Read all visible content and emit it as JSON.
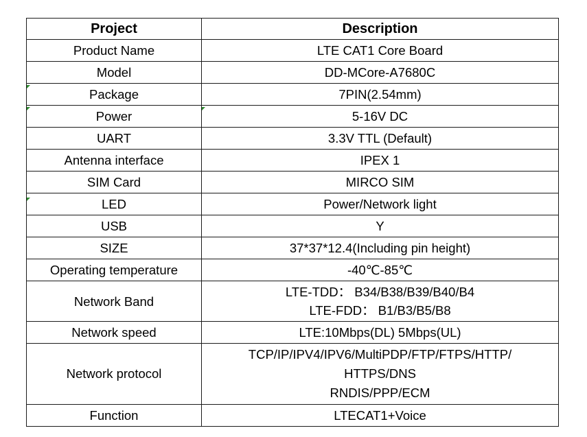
{
  "table": {
    "headers": {
      "project": "Project",
      "description": "Description"
    },
    "rows": [
      {
        "project": "Product Name",
        "description": [
          "LTE CAT1 Core Board"
        ]
      },
      {
        "project": "Model",
        "description": [
          "DD-MCore-A7680C"
        ]
      },
      {
        "project": "Package",
        "description": [
          "7PIN(2.54mm)"
        ]
      },
      {
        "project": "Power",
        "description": [
          "5-16V DC"
        ]
      },
      {
        "project": "UART",
        "description": [
          "3.3V TTL (Default)"
        ]
      },
      {
        "project": "Antenna interface",
        "description": [
          "IPEX 1"
        ]
      },
      {
        "project": "SIM Card",
        "description": [
          "MIRCO SIM"
        ]
      },
      {
        "project": "LED",
        "description": [
          "Power/Network light"
        ]
      },
      {
        "project": "USB",
        "description": [
          "Y"
        ]
      },
      {
        "project": "SIZE",
        "description": [
          "37*37*12.4(Including pin height)"
        ]
      },
      {
        "project": "Operating temperature",
        "description": [
          "-40℃-85℃"
        ]
      },
      {
        "project": "Network Band",
        "description": [
          "LTE-TDD： B34/B38/B39/B40/B4",
          "LTE-FDD： B1/B3/B5/B8"
        ]
      },
      {
        "project": "Network speed",
        "description": [
          "LTE:10Mbps(DL)  5Mbps(UL)"
        ]
      },
      {
        "project": "Network protocol",
        "description": [
          "TCP/IP/IPV4/IPV6/MultiPDP/FTP/FTPS/HTTP/",
          "HTTPS/DNS",
          "RNDIS/PPP/ECM"
        ]
      },
      {
        "project": "Function",
        "description": [
          "LTECAT1+Voice"
        ]
      }
    ]
  },
  "colors": {
    "border": "#1a1a1a",
    "text": "#000000",
    "cell_marker": "#2e8b2e"
  }
}
